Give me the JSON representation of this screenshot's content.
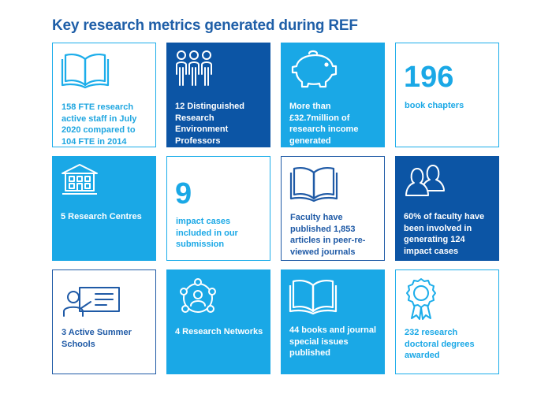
{
  "title": "Key research metrics generated during REF",
  "tiles": [
    {
      "icon": "open-book-icon",
      "text": "158 FTE research active staff in July 2020 compared to 104 FTE in 2014"
    },
    {
      "icon": "people-group-icon",
      "text": "12 Distinguished Research Environment Professors"
    },
    {
      "icon": "piggy-bank-icon",
      "text": "More than £32.7million of research income generated"
    },
    {
      "number": "196",
      "text": "book chapters"
    },
    {
      "icon": "building-icon",
      "text": "5 Research Centres"
    },
    {
      "number": "9",
      "text": "impact cases included in our submission"
    },
    {
      "icon": "open-book-icon",
      "text": "Faculty have published 1,853 articles in peer-re-viewed journals"
    },
    {
      "icon": "two-people-icon",
      "text": "60% of faculty have been involved in generating 124 impact cases"
    },
    {
      "icon": "presentation-board-icon",
      "text": "3 Active Summer Schools"
    },
    {
      "icon": "network-icon",
      "text": "4 Research Networks"
    },
    {
      "icon": "open-book-icon",
      "text": "44 books and journal special issues published"
    },
    {
      "icon": "award-rosette-icon",
      "text": "232 research doctoral degrees awarded"
    }
  ],
  "colors": {
    "title": "#1f5fa8",
    "light_blue": "#1aa8e6",
    "navy": "#0c55a5",
    "outline": "#1cadea"
  }
}
